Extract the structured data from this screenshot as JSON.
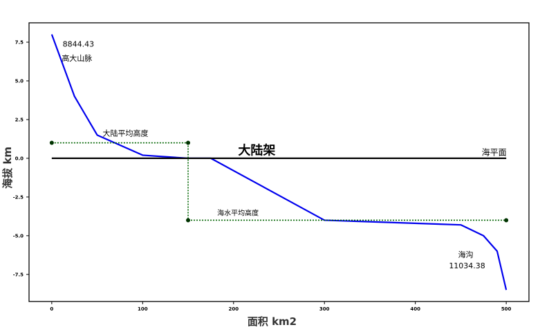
{
  "chart_data": {
    "type": "line",
    "xlabel": "面积  km2",
    "ylabel": "海拔  km",
    "xlim": [
      -25,
      525
    ],
    "ylim": [
      -9.25,
      8.75
    ],
    "xticks": [
      {
        "value": 0,
        "label": "0"
      },
      {
        "value": 100,
        "label": "100"
      },
      {
        "value": 200,
        "label": "200"
      },
      {
        "value": 300,
        "label": "300"
      },
      {
        "value": 400,
        "label": "400"
      },
      {
        "value": 500,
        "label": "500"
      }
    ],
    "yticks": [
      {
        "value": 7.5,
        "label": "7.5"
      },
      {
        "value": 5.0,
        "label": "5.0"
      },
      {
        "value": 2.5,
        "label": "2.5"
      },
      {
        "value": 0.0,
        "label": "0.0"
      },
      {
        "value": -2.5,
        "label": "-2.5"
      },
      {
        "value": -5.0,
        "label": "-5.0"
      },
      {
        "value": -7.5,
        "label": "-7.5"
      }
    ],
    "grid": false,
    "legend": "none",
    "series": [
      {
        "role": "hypsographic-curve",
        "color": "#0000ee",
        "x": [
          0,
          25,
          50,
          100,
          150,
          175,
          300,
          450,
          475,
          490,
          500
        ],
        "y": [
          8.0,
          4.0,
          1.5,
          0.2,
          0.0,
          0.0,
          -4.0,
          -4.3,
          -5.0,
          -6.0,
          -8.5
        ]
      },
      {
        "role": "sea-level-line",
        "color": "#000000",
        "x": [
          0,
          500
        ],
        "y": [
          0,
          0
        ]
      },
      {
        "role": "land-average-line",
        "color": "#006400",
        "x": [
          0,
          150
        ],
        "y": [
          1.0,
          1.0
        ]
      },
      {
        "role": "divider-line",
        "color": "#006400",
        "x": [
          150,
          150
        ],
        "y": [
          1.0,
          -4.0
        ]
      },
      {
        "role": "sea-average-line",
        "color": "#006400",
        "x": [
          150,
          500
        ],
        "y": [
          -4.0,
          -4.0
        ]
      }
    ],
    "markers": {
      "color": "#003300",
      "points": [
        [
          0,
          1.0
        ],
        [
          150,
          1.0
        ],
        [
          150,
          -4.0
        ],
        [
          500,
          -4.0
        ]
      ]
    },
    "annotations": [
      {
        "text": "8844.43",
        "x": 12,
        "y": 7.2,
        "size": 11
      },
      {
        "text": "高大山脉",
        "x": 11,
        "y": 6.3,
        "size": 11
      },
      {
        "text": "大陆平均高度",
        "x": 56,
        "y": 1.45,
        "size": 11
      },
      {
        "text": "大陆架",
        "x": 205,
        "y": 0.25,
        "size": 18
      },
      {
        "text": "海平面",
        "x": 473,
        "y": 0.2,
        "size": 12
      },
      {
        "text": "海水平均高度",
        "x": 182,
        "y": -3.7,
        "size": 10
      },
      {
        "text": "海沟",
        "x": 447,
        "y": -6.4,
        "size": 11
      },
      {
        "text": "11034.38",
        "x": 437,
        "y": -7.1,
        "size": 11
      }
    ]
  }
}
